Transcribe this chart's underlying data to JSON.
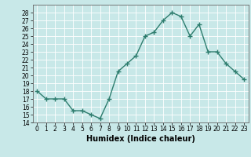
{
  "xlabel": "Humidex (Indice chaleur)",
  "x": [
    0,
    1,
    2,
    3,
    4,
    5,
    6,
    7,
    8,
    9,
    10,
    11,
    12,
    13,
    14,
    15,
    16,
    17,
    18,
    19,
    20,
    21,
    22,
    23
  ],
  "y": [
    18,
    17,
    17,
    17,
    15.5,
    15.5,
    15,
    14.5,
    17,
    20.5,
    21.5,
    22.5,
    25,
    25.5,
    27,
    28,
    27.5,
    25,
    26.5,
    23,
    23,
    21.5,
    20.5,
    19.5
  ],
  "ylim": [
    14,
    29
  ],
  "yticks": [
    14,
    15,
    16,
    17,
    18,
    19,
    20,
    21,
    22,
    23,
    24,
    25,
    26,
    27,
    28
  ],
  "line_color": "#2e7d6e",
  "bg_color": "#c8e8e8",
  "grid_color": "#ffffff",
  "marker": "+",
  "marker_size": 4,
  "line_width": 1.0,
  "label_fontsize": 7,
  "tick_fontsize": 5.5
}
